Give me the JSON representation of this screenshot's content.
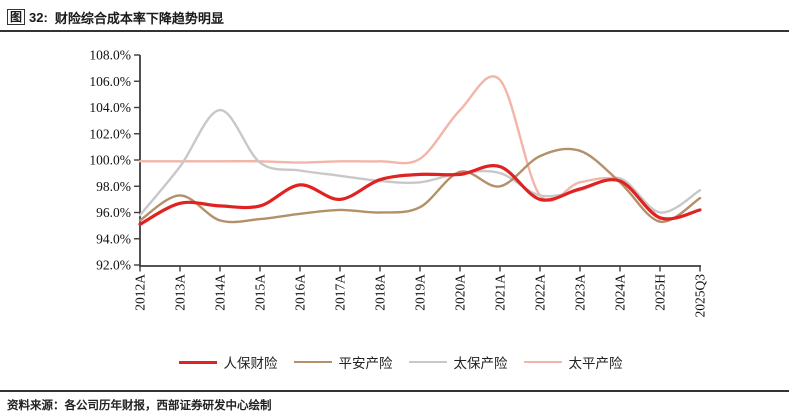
{
  "figure": {
    "tag_box": "图",
    "tag_rest": "32:",
    "title": "财险综合成本率下降趋势明显",
    "source": "资料来源：各公司历年财报，西部证券研发中心绘制"
  },
  "chart_data": {
    "type": "line",
    "smooth": true,
    "grid": false,
    "legend_position": "bottom",
    "background": "#ffffff",
    "axis_color": "#3d3d3d",
    "categories": [
      "2012A",
      "2013A",
      "2014A",
      "2015A",
      "2016A",
      "2017A",
      "2018A",
      "2019A",
      "2020A",
      "2021A",
      "2022A",
      "2023A",
      "2024A",
      "2025H",
      "2025Q3"
    ],
    "ylabel": "",
    "xlabel": "",
    "ylim": [
      92,
      108
    ],
    "ytick_step": 2,
    "yticks": [
      {
        "value": 108,
        "label": "108.0%"
      },
      {
        "value": 106,
        "label": "106.0%"
      },
      {
        "value": 104,
        "label": "104.0%"
      },
      {
        "value": 102,
        "label": "102.0%"
      },
      {
        "value": 100,
        "label": "100.0%"
      },
      {
        "value": 98,
        "label": "98.0%"
      },
      {
        "value": 96,
        "label": "96.0%"
      },
      {
        "value": 94,
        "label": "94.0%"
      },
      {
        "value": 92,
        "label": "92.0%"
      }
    ],
    "series": [
      {
        "name": "人保财险",
        "color": "#e02222",
        "line_width": 3.2,
        "values": [
          95.1,
          96.7,
          96.5,
          96.5,
          98.1,
          97.0,
          98.5,
          98.9,
          98.9,
          99.5,
          97.0,
          97.8,
          98.4,
          95.6,
          96.2
        ]
      },
      {
        "name": "平安产险",
        "color": "#b39069",
        "line_width": 2.4,
        "values": [
          95.4,
          97.3,
          95.4,
          95.5,
          95.9,
          96.2,
          96.0,
          96.4,
          99.1,
          98.0,
          100.3,
          100.7,
          98.3,
          95.3,
          97.1
        ]
      },
      {
        "name": "太保产险",
        "color": "#c8c8c8",
        "line_width": 2.4,
        "values": [
          95.8,
          99.5,
          103.8,
          99.8,
          99.2,
          98.8,
          98.4,
          98.3,
          99.0,
          99.0,
          97.3,
          97.7,
          98.6,
          96.0,
          97.7
        ]
      },
      {
        "name": "太平产险",
        "color": "#f3b5a8",
        "line_width": 2.4,
        "values": [
          99.9,
          99.9,
          99.9,
          99.9,
          99.8,
          99.9,
          99.9,
          100.1,
          103.8,
          106.1,
          97.3,
          98.3,
          98.4,
          95.5,
          null
        ]
      }
    ]
  }
}
